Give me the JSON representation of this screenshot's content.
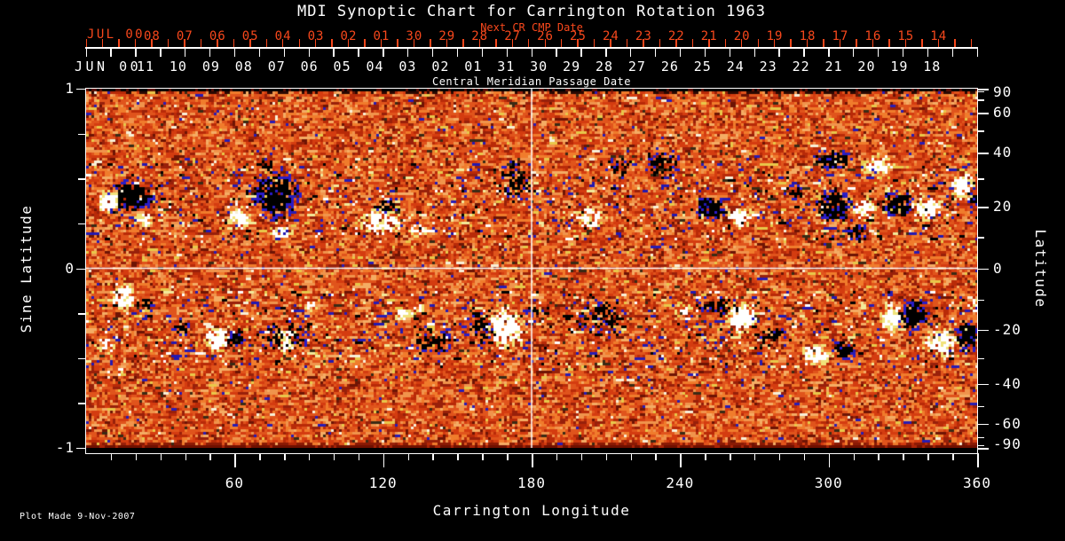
{
  "title": "MDI Synoptic Chart for Carrington Rotation 1963",
  "footer": {
    "plot_made": "Plot Made  9-Nov-2007"
  },
  "colors": {
    "background": "#000000",
    "foreground": "#ffffff",
    "red_axis": "#f8481c",
    "crosshair": "#ffffff"
  },
  "axes": {
    "top_next_cr": {
      "title": "Next CR CMP Date",
      "era": "JUL 00",
      "day_labels": [
        "08",
        "07",
        "06",
        "05",
        "04",
        "03",
        "02",
        "01",
        "30",
        "29",
        "28",
        "27",
        "26",
        "25",
        "24",
        "23",
        "22",
        "21",
        "20",
        "19",
        "18",
        "17",
        "16",
        "15",
        "14"
      ]
    },
    "top_cmp": {
      "title": "Central Meridian Passage Date",
      "era": "JUN 00",
      "day_labels": [
        "11",
        "10",
        "09",
        "08",
        "07",
        "06",
        "05",
        "04",
        "03",
        "02",
        "01",
        "31",
        "30",
        "29",
        "28",
        "27",
        "26",
        "25",
        "24",
        "23",
        "22",
        "21",
        "20",
        "19",
        "18"
      ]
    },
    "bottom": {
      "title": "Carrington Longitude",
      "major_ticks": [
        60,
        120,
        180,
        240,
        300,
        360
      ],
      "minor_step_deg": 10,
      "range_deg": [
        0,
        360
      ]
    },
    "left": {
      "title": "Sine Latitude",
      "labeled_ticks": [
        1,
        0,
        -1
      ],
      "minor_step": 0.25,
      "range": [
        -1,
        1
      ]
    },
    "right": {
      "title": "Latitude",
      "labeled_ticks": [
        90,
        60,
        40,
        20,
        0,
        -20,
        -40,
        -60,
        -90
      ],
      "minor_ticks": [
        80,
        70,
        50,
        30,
        10,
        -10,
        -30,
        -50,
        -70,
        -80
      ]
    }
  },
  "chart_data": {
    "type": "heatmap",
    "title": "MDI Synoptic Chart for Carrington Rotation 1963",
    "description": "Full-disk MDI photospheric magnetic field synoptic map; mottled orange/red quiet-sun salt-and-pepper field with bipolar active regions (white/yellow = positive polarity, black/blue = negative polarity) in two activity bands.",
    "x": {
      "label": "Carrington Longitude",
      "range": [
        0,
        360
      ],
      "ticks": [
        60,
        120,
        180,
        240,
        300,
        360
      ]
    },
    "y": {
      "label": "Sine Latitude",
      "range": [
        -1,
        1
      ],
      "ticks": [
        1,
        0,
        -1
      ]
    },
    "y2": {
      "label": "Latitude",
      "ticks": [
        90,
        60,
        40,
        20,
        0,
        -20,
        -40,
        -60,
        -90
      ]
    },
    "crosshair": {
      "longitude_deg": 180,
      "sine_latitude": 0
    },
    "activity_bands_sine_latitude": [
      [
        0.15,
        0.58
      ],
      [
        -0.55,
        -0.12
      ]
    ],
    "polarity_colors": {
      "negative_core": "#000000",
      "negative_fringe": "#2a1cc8",
      "positive_core": "#ffffff",
      "positive_fringe": "#f0e27a"
    },
    "background_palette": [
      [
        0.2,
        "#e0541c"
      ],
      [
        0.38,
        "#d43c10"
      ],
      [
        0.54,
        "#f07c2c"
      ],
      [
        0.66,
        "#b82a08"
      ],
      [
        0.76,
        "#f0944c"
      ],
      [
        0.84,
        "#98200a"
      ],
      [
        0.9,
        "#f4ac64"
      ],
      [
        0.94,
        "#6e1404"
      ],
      [
        0.962,
        "#e8c84a"
      ],
      [
        0.978,
        "#3a2a14"
      ],
      [
        0.99,
        "#281cb4"
      ],
      [
        1.0,
        "#f8f0d8"
      ]
    ],
    "band_speckle_palette": [
      [
        0.35,
        "#2318b0"
      ],
      [
        0.6,
        "#000000"
      ],
      [
        0.85,
        "#f2ea9a"
      ],
      [
        1.0,
        "#ffffff"
      ]
    ],
    "edge_strips": {
      "top": "#000000",
      "bottom": "#6e1000"
    },
    "active_regions": [
      [
        19,
        0.4,
        10,
        0.1,
        -1,
        0.92
      ],
      [
        9,
        0.37,
        5,
        0.07,
        1,
        0.92
      ],
      [
        23.7,
        0.27,
        4.3,
        0.04,
        1,
        0.85
      ],
      [
        76.4,
        0.41,
        10.8,
        0.14,
        -1,
        0.92
      ],
      [
        62,
        0.28,
        5.7,
        0.06,
        1,
        0.9
      ],
      [
        79,
        0.2,
        5,
        0.04,
        1,
        0.85
      ],
      [
        72.8,
        0.58,
        4.3,
        0.04,
        -1,
        0.4
      ],
      [
        119.4,
        0.26,
        9,
        0.075,
        1,
        0.85
      ],
      [
        121.2,
        0.35,
        5.4,
        0.04,
        -1,
        0.7
      ],
      [
        133.8,
        0.21,
        3.6,
        0.04,
        1,
        0.7
      ],
      [
        173.2,
        0.48,
        7.9,
        0.11,
        -1,
        0.5
      ],
      [
        203.7,
        0.28,
        7.2,
        0.07,
        1,
        0.5
      ],
      [
        216.2,
        0.56,
        6.5,
        0.07,
        -1,
        0.45
      ],
      [
        232.4,
        0.58,
        9,
        0.09,
        -1,
        0.4
      ],
      [
        252.1,
        0.33,
        6.5,
        0.07,
        -1,
        0.9
      ],
      [
        264.6,
        0.28,
        5.7,
        0.06,
        1,
        0.9
      ],
      [
        301.6,
        0.6,
        7.9,
        0.06,
        -1,
        0.9
      ],
      [
        320.2,
        0.57,
        6.5,
        0.065,
        1,
        0.9
      ],
      [
        286.2,
        0.42,
        5,
        0.05,
        -1,
        0.5
      ],
      [
        302.3,
        0.35,
        7.9,
        0.1,
        -1,
        0.92
      ],
      [
        314.1,
        0.33,
        5.4,
        0.065,
        1,
        0.9
      ],
      [
        328.1,
        0.36,
        7.2,
        0.08,
        -1,
        0.92
      ],
      [
        339.9,
        0.33,
        6.5,
        0.07,
        1,
        0.92
      ],
      [
        311.3,
        0.2,
        4.7,
        0.05,
        -1,
        0.7
      ],
      [
        354.3,
        0.46,
        5,
        0.09,
        1,
        0.9
      ],
      [
        358.6,
        0.38,
        2.9,
        0.05,
        -1,
        0.5
      ],
      [
        15.4,
        -0.16,
        5.7,
        0.08,
        1,
        0.9
      ],
      [
        24.4,
        -0.21,
        3.6,
        0.05,
        -1,
        0.5
      ],
      [
        8.2,
        -0.43,
        4.3,
        0.05,
        1,
        0.45
      ],
      [
        11.8,
        -0.58,
        3.6,
        0.04,
        1,
        0.4
      ],
      [
        38.7,
        -0.33,
        4.3,
        0.05,
        -1,
        0.5
      ],
      [
        53.1,
        -0.39,
        5.7,
        0.07,
        1,
        0.9
      ],
      [
        60.2,
        -0.39,
        4.3,
        0.05,
        -1,
        0.85
      ],
      [
        80,
        -0.38,
        10.8,
        0.11,
        -1,
        0.5
      ],
      [
        80.7,
        -0.41,
        2.9,
        0.09,
        1,
        0.85
      ],
      [
        90.7,
        -0.21,
        3.6,
        0.04,
        1,
        0.45
      ],
      [
        128.4,
        -0.26,
        3.6,
        0.04,
        1,
        0.8
      ],
      [
        140.9,
        -0.41,
        9,
        0.09,
        -1,
        0.5
      ],
      [
        133.8,
        -0.21,
        2.9,
        0.04,
        1,
        0.5
      ],
      [
        158.9,
        -0.33,
        6.5,
        0.11,
        -1,
        0.55
      ],
      [
        169.6,
        -0.33,
        7.9,
        0.13,
        1,
        0.9
      ],
      [
        180.4,
        -0.235,
        3.6,
        0.04,
        -1,
        0.45
      ],
      [
        209.1,
        -0.28,
        10.8,
        0.12,
        -1,
        0.45
      ],
      [
        241.3,
        -0.235,
        3.6,
        0.04,
        1,
        0.7
      ],
      [
        255.7,
        -0.21,
        10,
        0.06,
        -1,
        0.5
      ],
      [
        264.6,
        -0.28,
        7.9,
        0.09,
        1,
        0.9
      ],
      [
        277.2,
        -0.38,
        6.5,
        0.07,
        -1,
        0.5
      ],
      [
        295.1,
        -0.48,
        6.5,
        0.07,
        1,
        0.9
      ],
      [
        305.9,
        -0.46,
        5,
        0.06,
        -1,
        0.85
      ],
      [
        325.6,
        -0.28,
        5,
        0.09,
        1,
        0.9
      ],
      [
        334.6,
        -0.26,
        6.5,
        0.1,
        -1,
        0.9
      ],
      [
        345.3,
        -0.41,
        7.9,
        0.09,
        1,
        0.92
      ],
      [
        356.1,
        -0.38,
        5,
        0.1,
        -1,
        0.9
      ],
      [
        359.7,
        -0.21,
        2.9,
        0.04,
        1,
        0.7
      ]
    ]
  }
}
